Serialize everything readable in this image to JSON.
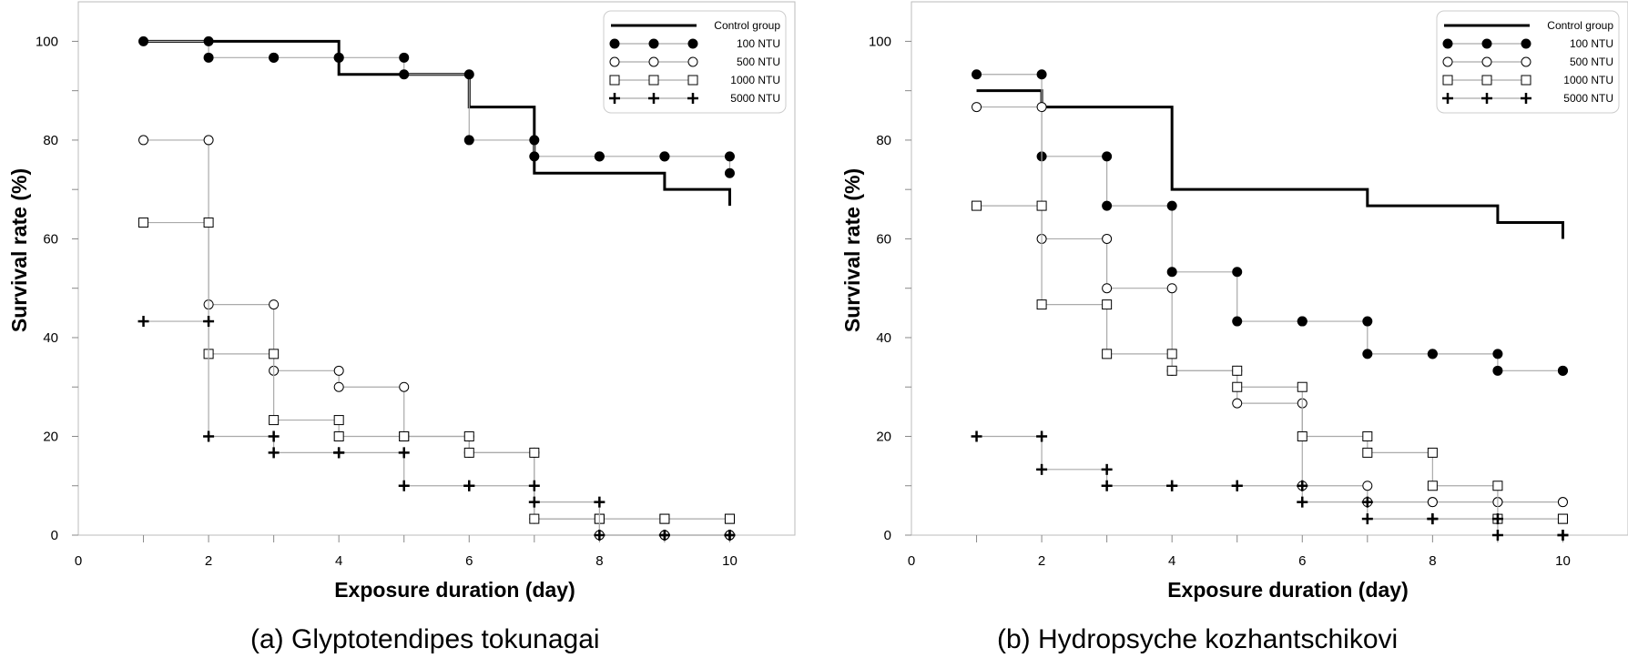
{
  "chart_data": [
    {
      "type": "line",
      "step": true,
      "caption": "(a)  Glyptotendipes  tokunagai",
      "xlabel": "Exposure duration (day)",
      "ylabel": "Survival rate (%)",
      "xlim": [
        0,
        11
      ],
      "ylim": [
        0,
        108
      ],
      "xticks": [
        0,
        2,
        4,
        6,
        8,
        10
      ],
      "yticks": [
        0,
        20,
        40,
        60,
        80,
        100
      ],
      "legend_position": "top-right",
      "series": [
        {
          "name": "Control group",
          "style": "thick-line",
          "color": "#000000",
          "x": [
            1,
            2,
            3,
            4,
            5,
            6,
            7,
            8,
            9,
            10
          ],
          "y": [
            100,
            100,
            100,
            93.3,
            93.3,
            86.7,
            73.3,
            73.3,
            70,
            66.7
          ]
        },
        {
          "name": "100 NTU",
          "style": "filled-circle",
          "color": "#000000",
          "x": [
            1,
            2,
            3,
            4,
            5,
            6,
            7,
            8,
            9,
            10
          ],
          "y": [
            100,
            96.7,
            96.7,
            96.7,
            93.3,
            80,
            76.7,
            76.7,
            76.7,
            73.3
          ]
        },
        {
          "name": "500 NTU",
          "style": "open-circle",
          "color": "#000000",
          "x": [
            1,
            2,
            3,
            4,
            5,
            6,
            7,
            8,
            9,
            10
          ],
          "y": [
            80,
            46.7,
            33.3,
            30,
            20,
            16.7,
            3.3,
            0,
            0,
            0
          ]
        },
        {
          "name": "1000 NTU",
          "style": "open-square",
          "color": "#000000",
          "x": [
            1,
            2,
            3,
            4,
            5,
            6,
            7,
            8,
            9,
            10
          ],
          "y": [
            63.3,
            36.7,
            23.3,
            20,
            20,
            16.7,
            3.3,
            3.3,
            3.3,
            3.3
          ]
        },
        {
          "name": "5000 NTU",
          "style": "plus",
          "color": "#000000",
          "x": [
            1,
            2,
            3,
            4,
            5,
            6,
            7,
            8,
            9,
            10
          ],
          "y": [
            43.3,
            20,
            16.7,
            16.7,
            10,
            10,
            6.7,
            0,
            0,
            0
          ]
        }
      ]
    },
    {
      "type": "line",
      "step": true,
      "caption": "(b)  Hydropsyche  kozhantschikovi",
      "xlabel": "Exposure duration (day)",
      "ylabel": "Survival rate (%)",
      "xlim": [
        0,
        11
      ],
      "ylim": [
        0,
        108
      ],
      "xticks": [
        0,
        2,
        4,
        6,
        8,
        10
      ],
      "yticks": [
        0,
        20,
        40,
        60,
        80,
        100
      ],
      "legend_position": "top-right",
      "series": [
        {
          "name": "Control group",
          "style": "thick-line",
          "color": "#000000",
          "x": [
            1,
            2,
            3,
            4,
            5,
            6,
            7,
            8,
            9,
            10
          ],
          "y": [
            90,
            86.7,
            86.7,
            70,
            70,
            70,
            66.7,
            66.7,
            63.3,
            60
          ]
        },
        {
          "name": "100 NTU",
          "style": "filled-circle",
          "color": "#000000",
          "x": [
            1,
            2,
            3,
            4,
            5,
            6,
            7,
            8,
            9,
            10
          ],
          "y": [
            93.3,
            76.7,
            66.7,
            53.3,
            43.3,
            43.3,
            36.7,
            36.7,
            33.3,
            33.3
          ]
        },
        {
          "name": "500 NTU",
          "style": "open-circle",
          "color": "#000000",
          "x": [
            1,
            2,
            3,
            4,
            5,
            6,
            7,
            8,
            9,
            10
          ],
          "y": [
            86.7,
            60,
            50,
            33.3,
            26.7,
            10,
            6.7,
            6.7,
            6.7,
            6.7
          ]
        },
        {
          "name": "1000 NTU",
          "style": "open-square",
          "color": "#000000",
          "x": [
            1,
            2,
            3,
            4,
            5,
            6,
            7,
            8,
            9,
            10
          ],
          "y": [
            66.7,
            46.7,
            36.7,
            33.3,
            30,
            20,
            16.7,
            10,
            3.3,
            3.3
          ]
        },
        {
          "name": "5000 NTU",
          "style": "plus",
          "color": "#000000",
          "x": [
            1,
            2,
            3,
            4,
            5,
            6,
            7,
            8,
            9,
            10
          ],
          "y": [
            20,
            13.3,
            10,
            10,
            10,
            6.7,
            3.3,
            3.3,
            0,
            0
          ]
        }
      ]
    }
  ]
}
